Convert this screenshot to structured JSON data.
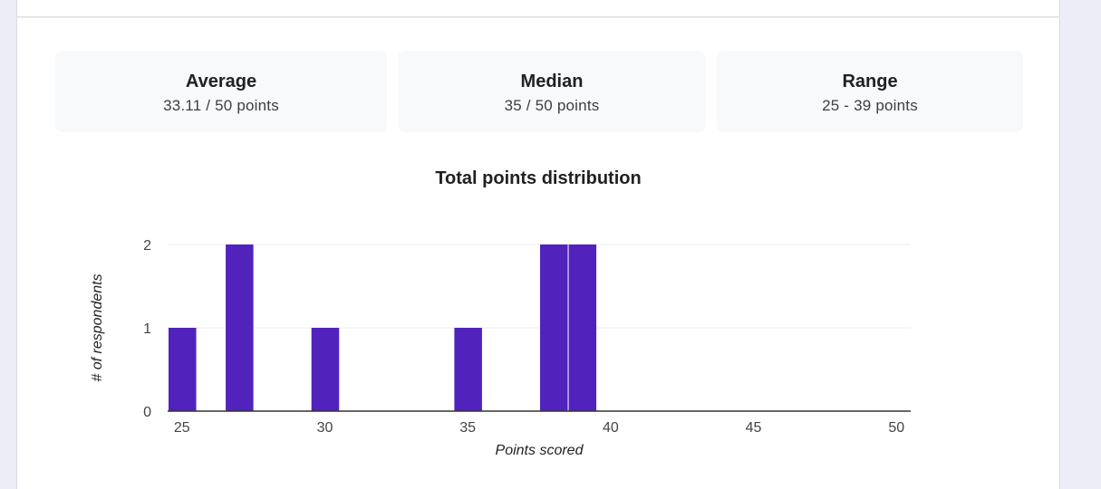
{
  "summary": {
    "average": {
      "label": "Average",
      "value": "33.11 / 50 points"
    },
    "median": {
      "label": "Median",
      "value": "35 / 50 points"
    },
    "range": {
      "label": "Range",
      "value": "25 - 39 points"
    }
  },
  "chart_data": {
    "type": "bar",
    "title": "Total points distribution",
    "xlabel": "Points scored",
    "ylabel": "# of respondents",
    "xlim": [
      24.5,
      50.5
    ],
    "ylim": [
      0,
      2
    ],
    "xticks": [
      "25",
      "30",
      "35",
      "40",
      "45",
      "50"
    ],
    "yticks": [
      "0",
      "1",
      "2"
    ],
    "bar_color": "#5222bd",
    "x": [
      25,
      27,
      30,
      35,
      38,
      39
    ],
    "values": [
      1,
      2,
      1,
      1,
      2,
      2
    ]
  }
}
